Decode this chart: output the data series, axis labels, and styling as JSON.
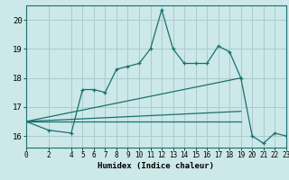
{
  "title": "",
  "xlabel": "Humidex (Indice chaleur)",
  "background_color": "#cce8e8",
  "grid_color": "#aacccc",
  "line_color": "#1a7070",
  "xlim": [
    0,
    23
  ],
  "ylim": [
    15.6,
    20.5
  ],
  "xticks": [
    0,
    2,
    4,
    5,
    6,
    7,
    8,
    9,
    10,
    11,
    12,
    13,
    14,
    15,
    16,
    17,
    18,
    19,
    20,
    21,
    22,
    23
  ],
  "yticks": [
    16,
    17,
    18,
    19,
    20
  ],
  "main_line": {
    "x": [
      0,
      2,
      4,
      5,
      6,
      7,
      8,
      9,
      10,
      11,
      12,
      13,
      14,
      15,
      16,
      17,
      18,
      19,
      20,
      21,
      22,
      23
    ],
    "y": [
      16.5,
      16.2,
      16.1,
      17.6,
      17.6,
      17.5,
      18.3,
      18.4,
      18.5,
      19.0,
      20.35,
      19.0,
      18.5,
      18.5,
      18.5,
      19.1,
      18.9,
      18.0,
      16.0,
      15.75,
      16.1,
      16.0
    ]
  },
  "trend_line1": {
    "x": [
      0,
      19
    ],
    "y": [
      16.5,
      18.0
    ]
  },
  "trend_line2": {
    "x": [
      0,
      19
    ],
    "y": [
      16.5,
      16.85
    ]
  },
  "flat_line": {
    "x": [
      0,
      19
    ],
    "y": [
      16.5,
      16.5
    ]
  }
}
